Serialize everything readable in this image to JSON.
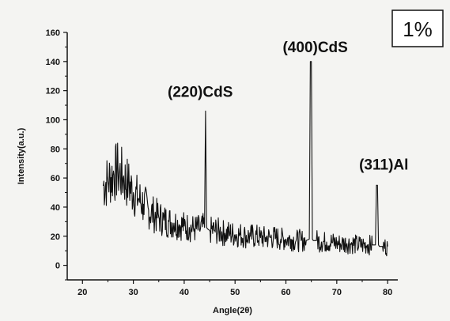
{
  "chart_data": {
    "type": "line",
    "title": "",
    "xlabel": "Angle(2θ)",
    "ylabel": "Intensity(a.u.)",
    "xlim": [
      17,
      82
    ],
    "ylim": [
      -10,
      160
    ],
    "xticks": [
      20,
      30,
      40,
      50,
      60,
      70,
      80
    ],
    "yticks": [
      0,
      20,
      40,
      60,
      80,
      100,
      120,
      140,
      160
    ],
    "grid": false,
    "legend": "none",
    "badge": "1%",
    "series": [
      {
        "color": "#111111",
        "x": [
          24,
          25,
          26,
          27,
          28,
          29,
          30,
          31,
          32,
          33,
          34,
          35,
          36,
          37,
          38,
          39,
          40,
          41,
          42,
          43,
          44,
          44.2,
          44.4,
          44.6,
          45,
          46,
          47,
          48,
          49,
          50,
          51,
          52,
          53,
          54,
          55,
          56,
          57,
          58,
          59,
          60,
          61,
          62,
          63,
          64,
          64.6,
          64.8,
          65.0,
          65.2,
          65.4,
          66,
          67,
          68,
          69,
          70,
          71,
          72,
          73,
          74,
          75,
          76,
          77,
          77.6,
          77.8,
          78.0,
          78.2,
          78.4,
          79,
          80
        ],
        "y": [
          55,
          58,
          62,
          65,
          60,
          56,
          50,
          46,
          42,
          38,
          35,
          33,
          31,
          30,
          29,
          28,
          27,
          26,
          25,
          25,
          26,
          106,
          26,
          25,
          24,
          24,
          23,
          22,
          22,
          21,
          21,
          20,
          20,
          20,
          19,
          19,
          19,
          19,
          18,
          18,
          18,
          17,
          17,
          17,
          18,
          140,
          140,
          18,
          17,
          17,
          16,
          16,
          16,
          15,
          15,
          15,
          15,
          14,
          14,
          14,
          14,
          14,
          55,
          55,
          14,
          13,
          13,
          13
        ]
      }
    ],
    "annotations": [
      {
        "text": "(220)CdS",
        "x": 44.4,
        "y": 106
      },
      {
        "text": "(400)CdS",
        "x": 65,
        "y": 140
      },
      {
        "text": "(311)Al",
        "x": 78,
        "y": 55
      }
    ]
  }
}
